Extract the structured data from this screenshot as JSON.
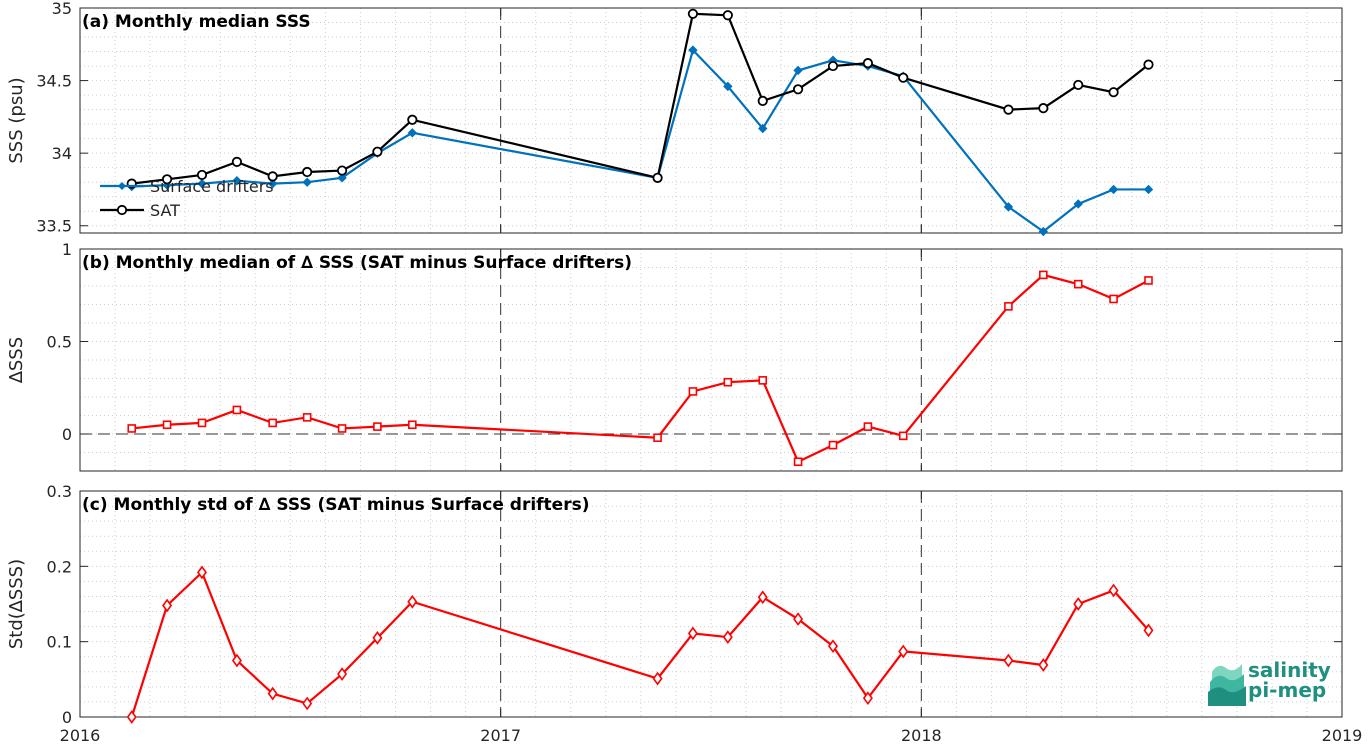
{
  "chart_data": [
    {
      "type": "line",
      "title": "(a) Monthly median SSS",
      "ylabel": "SSS (psu)",
      "xlim": [
        2016,
        2019
      ],
      "ylim": [
        33.45,
        35
      ],
      "yticks": [
        "33.5",
        "34",
        "34.5",
        "35"
      ],
      "grid": true,
      "legend_position": "bottom-left",
      "series": [
        {
          "name": "Surface drifters",
          "color": "#0072bd",
          "marker": "diamond",
          "x": [
            2016.123,
            2016.207,
            2016.29,
            2016.373,
            2016.458,
            2016.54,
            2016.623,
            2016.707,
            2016.79,
            2017.373,
            2017.457,
            2017.54,
            2017.623,
            2017.707,
            2017.79,
            2017.873,
            2017.957,
            2018.207,
            2018.29,
            2018.373,
            2018.457,
            2018.54
          ],
          "values": [
            33.77,
            33.78,
            33.79,
            33.81,
            33.79,
            33.8,
            33.83,
            34.0,
            34.14,
            33.83,
            34.71,
            34.46,
            34.17,
            34.57,
            34.64,
            34.6,
            34.53,
            33.63,
            33.46,
            33.65,
            33.75,
            33.75
          ]
        },
        {
          "name": "SAT",
          "color": "#000000",
          "marker": "circle",
          "x": [
            2016.123,
            2016.207,
            2016.29,
            2016.373,
            2016.458,
            2016.54,
            2016.623,
            2016.707,
            2016.79,
            2017.373,
            2017.457,
            2017.54,
            2017.623,
            2017.707,
            2017.79,
            2017.873,
            2017.957,
            2018.207,
            2018.29,
            2018.373,
            2018.457,
            2018.54
          ],
          "values": [
            33.79,
            33.82,
            33.85,
            33.94,
            33.84,
            33.87,
            33.88,
            34.01,
            34.23,
            33.83,
            34.96,
            34.95,
            34.36,
            34.44,
            34.6,
            34.62,
            34.52,
            34.3,
            34.31,
            34.47,
            34.42,
            34.61
          ]
        }
      ]
    },
    {
      "type": "line",
      "title": "(b) Monthly median of ∆ SSS (SAT minus Surface drifters)",
      "ylabel": "∆SSS",
      "xlim": [
        2016,
        2019
      ],
      "ylim": [
        -0.2,
        1
      ],
      "yticks": [
        "0",
        "0.5",
        "1"
      ],
      "grid": true,
      "series": [
        {
          "color": "#ff0000",
          "marker": "square",
          "x": [
            2016.123,
            2016.207,
            2016.29,
            2016.373,
            2016.458,
            2016.54,
            2016.623,
            2016.707,
            2016.79,
            2017.373,
            2017.457,
            2017.54,
            2017.623,
            2017.707,
            2017.79,
            2017.873,
            2017.957,
            2018.207,
            2018.29,
            2018.373,
            2018.457,
            2018.54
          ],
          "values": [
            0.03,
            0.05,
            0.06,
            0.13,
            0.06,
            0.09,
            0.03,
            0.04,
            0.05,
            -0.02,
            0.23,
            0.28,
            0.29,
            -0.15,
            -0.06,
            0.04,
            -0.01,
            0.69,
            0.86,
            0.81,
            0.73,
            0.83
          ]
        }
      ]
    },
    {
      "type": "line",
      "title": "(c) Monthly std of ∆ SSS (SAT minus Surface drifters)",
      "ylabel": "Std(∆SSS)",
      "xlim": [
        2016,
        2019
      ],
      "ylim": [
        0,
        0.3
      ],
      "xticks": [
        "2016",
        "2017",
        "2018",
        "2019"
      ],
      "yticks": [
        "0",
        "0.1",
        "0.2",
        "0.3"
      ],
      "grid": true,
      "series": [
        {
          "color": "#ff0000",
          "marker": "diamond",
          "x": [
            2016.123,
            2016.207,
            2016.29,
            2016.373,
            2016.458,
            2016.54,
            2016.623,
            2016.707,
            2016.79,
            2017.373,
            2017.457,
            2017.54,
            2017.623,
            2017.707,
            2017.79,
            2017.873,
            2017.957,
            2018.207,
            2018.29,
            2018.373,
            2018.457,
            2018.54
          ],
          "values": [
            0.0,
            0.148,
            0.192,
            0.075,
            0.031,
            0.018,
            0.057,
            0.105,
            0.153,
            0.051,
            0.111,
            0.106,
            0.159,
            0.13,
            0.094,
            0.025,
            0.087,
            0.075,
            0.069,
            0.15,
            0.168,
            0.115
          ]
        }
      ]
    }
  ],
  "logo": {
    "line1": "salinity",
    "line2": "pi-mep",
    "color": "#1f8f7f"
  }
}
